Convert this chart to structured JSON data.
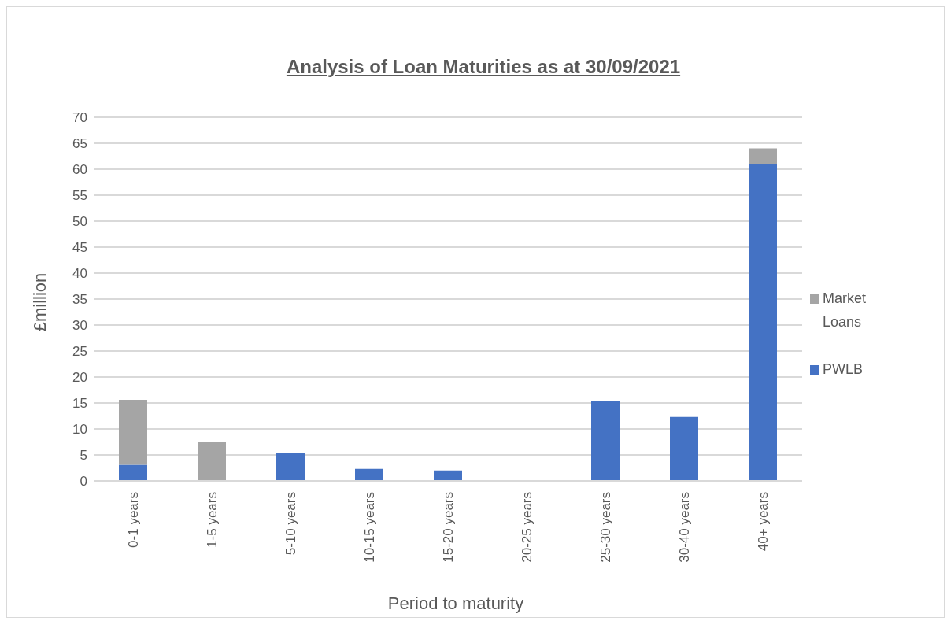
{
  "chart_data": {
    "type": "bar",
    "title": "Analysis of Loan Maturities as at 30/09/2021",
    "xlabel": "Period to maturity",
    "ylabel": "£million",
    "categories": [
      "0-1 years",
      "1-5 years",
      "5-10 years",
      "10-15 years",
      "15-20 years",
      "20-25 years",
      "25-30 years",
      "30-40 years",
      "40+ years"
    ],
    "series": [
      {
        "name": "PWLB",
        "color": "#4472c4",
        "values": [
          3.1,
          0,
          5.3,
          2.3,
          2.0,
          0,
          15.4,
          12.3,
          61
        ]
      },
      {
        "name": "Market Loans",
        "color": "#a5a5a5",
        "values": [
          12.5,
          7.5,
          0,
          0,
          0,
          0,
          0,
          0,
          3
        ]
      }
    ],
    "stacked": true,
    "ylim": [
      0,
      70
    ],
    "yticks": [
      0,
      5,
      10,
      15,
      20,
      25,
      30,
      35,
      40,
      45,
      50,
      55,
      60,
      65,
      70
    ],
    "grid": "y",
    "legend": "right"
  }
}
